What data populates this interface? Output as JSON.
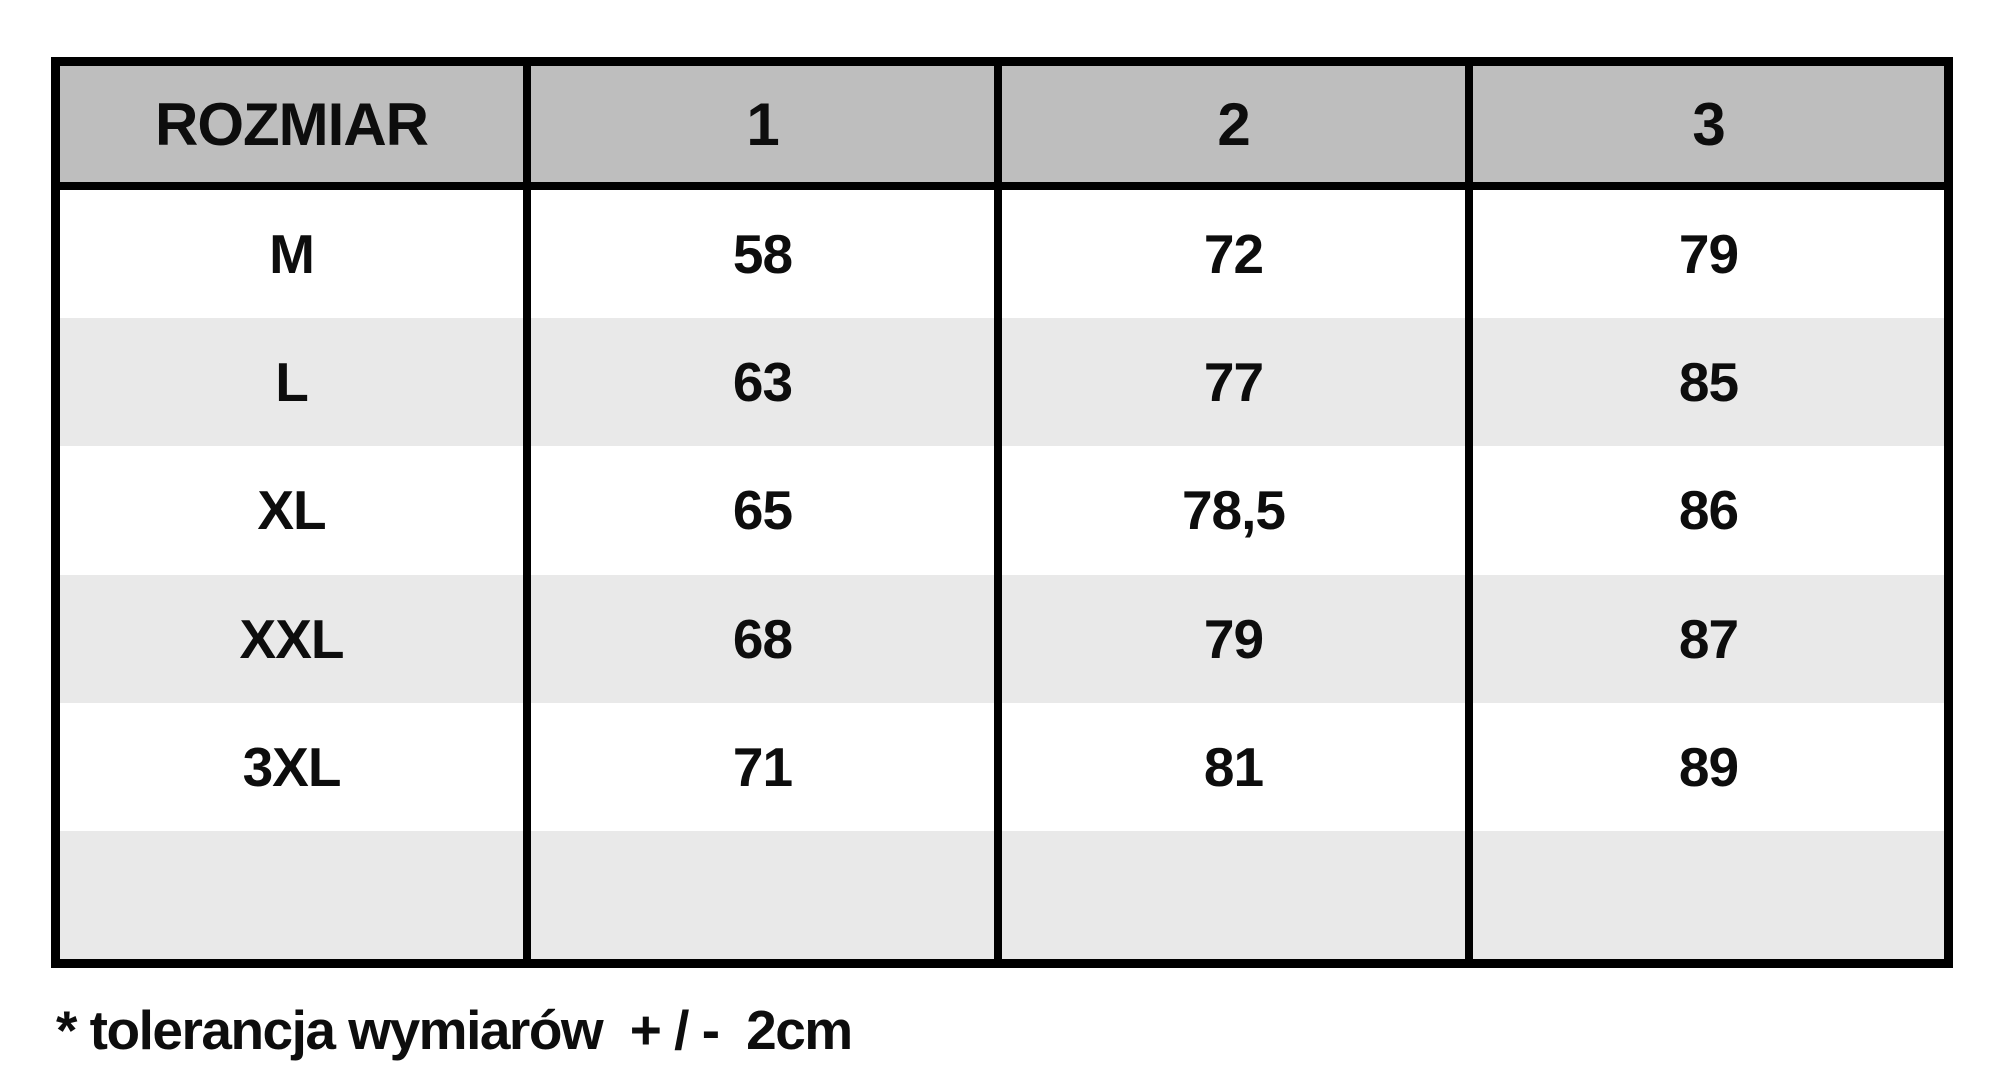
{
  "chart_data": {
    "type": "table",
    "title": "ROZMIAR (size chart)",
    "columns": [
      "ROZMIAR",
      "1",
      "2",
      "3"
    ],
    "rows": [
      [
        "M",
        "58",
        "72",
        "79"
      ],
      [
        "L",
        "63",
        "77",
        "85"
      ],
      [
        "XL",
        "65",
        "78,5",
        "86"
      ],
      [
        "XXL",
        "68",
        "79",
        "87"
      ],
      [
        "3XL",
        "71",
        "81",
        "89"
      ],
      [
        "",
        "",
        "",
        ""
      ]
    ],
    "footnote": "* tolerancja wymiarów  + / -  2cm",
    "layout_hints": {
      "header_background": "#bebebe",
      "alt_row_background": "#e9e9e9",
      "row_background": "#ffffff",
      "grid_border": "#000000",
      "horizontal_row_borders": false,
      "vertical_column_borders": true
    }
  },
  "table": {
    "headers": [
      "ROZMIAR",
      "1",
      "2",
      "3"
    ],
    "rows": [
      {
        "cells": [
          "M",
          "58",
          "72",
          "79"
        ]
      },
      {
        "cells": [
          "L",
          "63",
          "77",
          "85"
        ]
      },
      {
        "cells": [
          "XL",
          "65",
          "78,5",
          "86"
        ]
      },
      {
        "cells": [
          "XXL",
          "68",
          "79",
          "87"
        ]
      },
      {
        "cells": [
          "3XL",
          "71",
          "81",
          "89"
        ]
      },
      {
        "cells": [
          "",
          "",
          "",
          ""
        ]
      }
    ]
  },
  "footnote": "* tolerancja wymiarów  + / -  2cm",
  "colors": {
    "header_bg": "#bebebe",
    "alt_row_bg": "#e9e9e9",
    "row_bg": "#ffffff",
    "border": "#000000",
    "text": "#0d0d0d"
  }
}
